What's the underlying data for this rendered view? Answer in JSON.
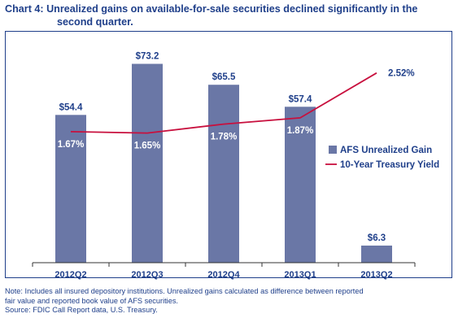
{
  "title": {
    "line1": "Chart 4: Unrealized gains on available-for-sale securities declined significantly in the",
    "line2": "second quarter."
  },
  "colors": {
    "bar": "#6a77a6",
    "line": "#c8103e",
    "text": "#1f3f8a",
    "frame": "#1f3f8a"
  },
  "chart_data": {
    "type": "bar",
    "categories": [
      "2012Q2",
      "2012Q3",
      "2012Q4",
      "2013Q1",
      "2013Q2"
    ],
    "series": [
      {
        "name": "AFS Unrealized Gain",
        "type": "bar",
        "values": [
          54.4,
          73.2,
          65.5,
          57.4,
          6.3
        ],
        "labels": [
          "$54.4",
          "$73.2",
          "$65.5",
          "$57.4",
          "$6.3"
        ]
      },
      {
        "name": "10-Year Treasury Yield",
        "type": "line",
        "values": [
          1.67,
          1.65,
          1.78,
          1.87,
          2.52
        ],
        "labels": [
          "1.67%",
          "1.65%",
          "1.78%",
          "1.87%",
          "2.52%"
        ]
      }
    ],
    "ylim": [
      0,
      80
    ],
    "y2lim": [
      0,
      3.0
    ],
    "grid": false,
    "legend": "right"
  },
  "notes": {
    "line1": "Note: Includes all insured depository institutions.  Unrealized gains calculated as difference between reported",
    "line2": "fair value and reported book value of AFS securities.",
    "line3": "Source: FDIC Call Report data, U.S. Treasury."
  }
}
